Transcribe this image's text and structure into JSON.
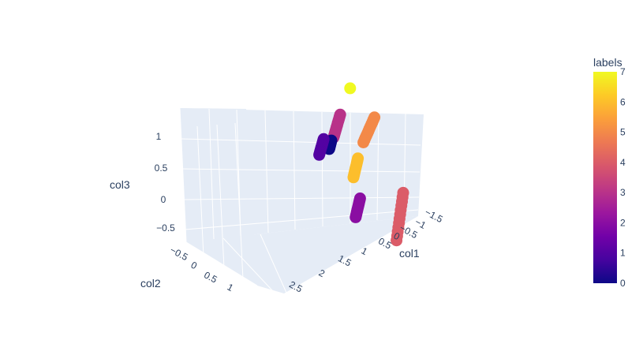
{
  "chart_data": {
    "type": "scatter3d",
    "axes": {
      "x": {
        "label": "col1",
        "ticks": [
          "−1.5",
          "−1",
          "−0.5",
          "0",
          "0.5",
          "1",
          "1.5",
          "2",
          "2.5"
        ]
      },
      "y": {
        "label": "col2",
        "ticks": [
          "−0.5",
          "0",
          "0.5",
          "1"
        ]
      },
      "z": {
        "label": "col3",
        "ticks": [
          "−0.5",
          "0",
          "0.5",
          "1"
        ]
      }
    },
    "colorbar": {
      "title": "labels",
      "range": [
        0,
        7
      ],
      "ticks": [
        "0",
        "1",
        "2",
        "3",
        "4",
        "5",
        "6",
        "7"
      ]
    },
    "grid": true,
    "clusters": [
      {
        "label": 0,
        "x": [
          -0.3,
          -0.1
        ],
        "y": [
          0.55,
          0.65
        ],
        "z": [
          0.25,
          0.45
        ]
      },
      {
        "label": 1,
        "x": [
          -0.4,
          -0.1
        ],
        "y": [
          0.9,
          1.0
        ],
        "z": [
          0.1,
          0.45
        ]
      },
      {
        "label": 2,
        "x": [
          1.3,
          1.6
        ],
        "y": [
          0.95,
          1.05
        ],
        "z": [
          -0.35,
          0.05
        ]
      },
      {
        "label": 3,
        "x": [
          -0.3,
          0.1
        ],
        "y": [
          0.35,
          0.45
        ],
        "z": [
          0.45,
          0.95
        ]
      },
      {
        "label": 4,
        "x": [
          1.7,
          2.1
        ],
        "y": [
          -0.5,
          -0.4
        ],
        "z": [
          -0.5,
          0.4
        ]
      },
      {
        "label": 5,
        "x": [
          0.6,
          1.2
        ],
        "y": [
          -0.1,
          0.0
        ],
        "z": [
          0.7,
          1.3
        ]
      },
      {
        "label": 6,
        "x": [
          0.4,
          0.7
        ],
        "y": [
          0.15,
          0.25
        ],
        "z": [
          0.05,
          0.45
        ]
      },
      {
        "label": 7,
        "x": [
          0.0
        ],
        "y": [
          -0.1
        ],
        "z": [
          1.38
        ]
      }
    ]
  }
}
